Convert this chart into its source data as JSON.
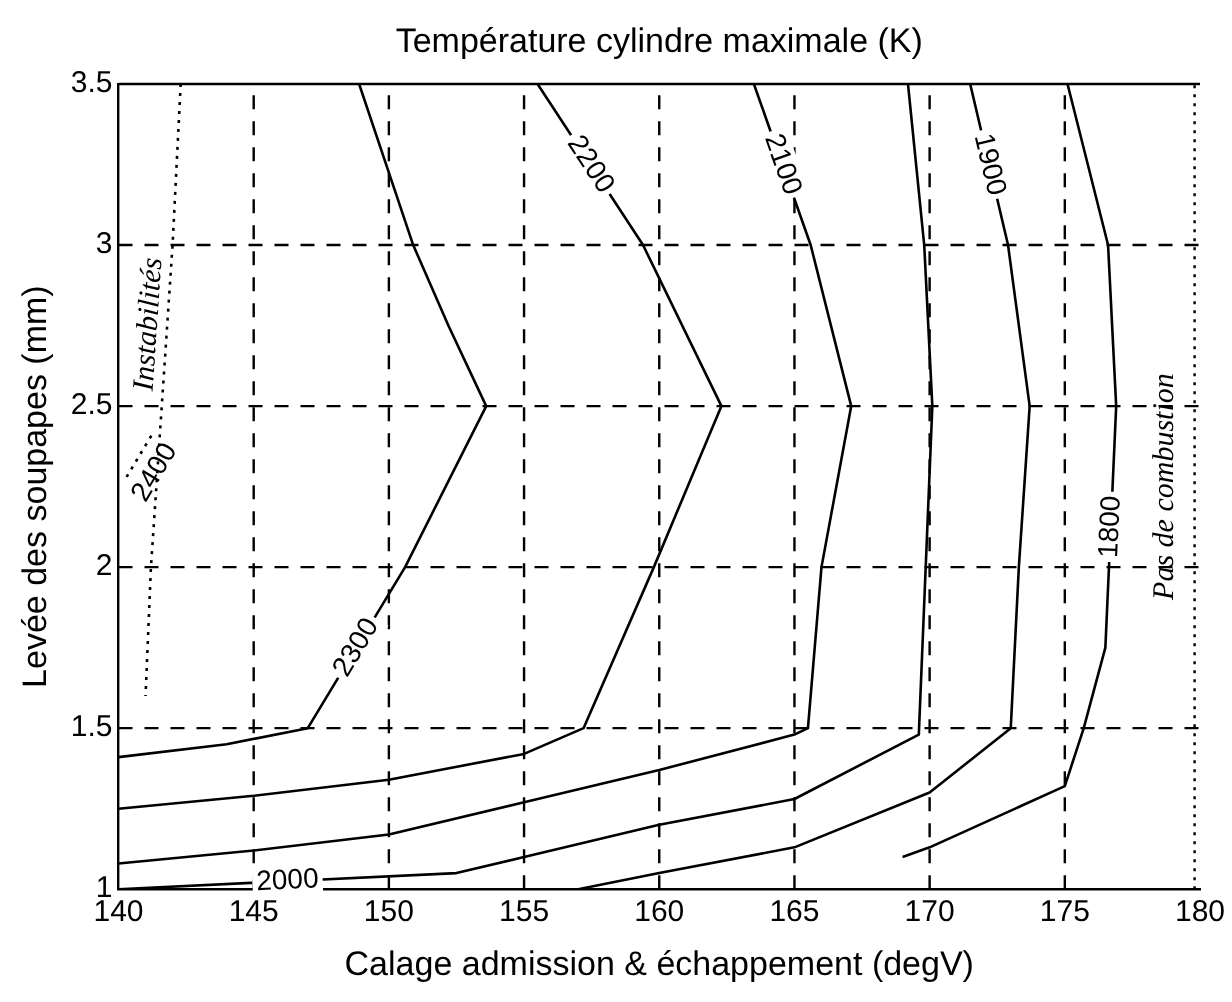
{
  "chart_data": {
    "type": "line",
    "title": "Température cylindre maximale (K)",
    "xlabel": "Calage admission & échappement (degV)",
    "ylabel": "Levée des soupapes (mm)",
    "xlim": [
      140,
      180
    ],
    "xticks": [
      140,
      145,
      150,
      155,
      160,
      165,
      170,
      175,
      180
    ],
    "ylim": [
      1,
      3.5
    ],
    "yticks": [
      1,
      1.5,
      2,
      2.5,
      3,
      3.5
    ],
    "grid": true,
    "legend": false,
    "marker": "none",
    "series": [
      {
        "name": "2400",
        "color": "#000000",
        "line_style": "dotted",
        "x": [
          140.3,
          141.3
        ],
        "values": [
          2.28,
          2.42
        ]
      },
      {
        "name": "Instabilités",
        "color": "#000000",
        "line_style": "dotted",
        "x": [
          142.3,
          142,
          141.6,
          141.2,
          141
        ],
        "values": [
          3.5,
          3,
          2.5,
          2,
          1.6
        ]
      },
      {
        "name": "2300",
        "color": "#000000",
        "line_style": "solid",
        "x": [
          140,
          144,
          147,
          150.6,
          153.6,
          152.2,
          150.9,
          148.9
        ],
        "values": [
          1.41,
          1.45,
          1.5,
          2,
          2.5,
          2.75,
          3,
          3.5
        ]
      },
      {
        "name": "2200",
        "color": "#000000",
        "line_style": "solid",
        "x": [
          140,
          145,
          150,
          155,
          157.2,
          159.8,
          162.3,
          159.4,
          155.5
        ],
        "values": [
          1.25,
          1.29,
          1.34,
          1.42,
          1.5,
          2,
          2.5,
          3,
          3.5
        ]
      },
      {
        "name": "2100",
        "color": "#000000",
        "line_style": "solid",
        "x": [
          140,
          145,
          150,
          155,
          160,
          165,
          165.5,
          166,
          167.1,
          165.6,
          163.5
        ],
        "values": [
          1.08,
          1.12,
          1.17,
          1.27,
          1.37,
          1.48,
          1.5,
          2,
          2.5,
          3,
          3.5
        ]
      },
      {
        "name": "2000",
        "color": "#000000",
        "line_style": "solid",
        "x": [
          140,
          152.5,
          155,
          160,
          165,
          169.6,
          170.1,
          169.8,
          169.2
        ],
        "values": [
          1,
          1.05,
          1.1,
          1.2,
          1.28,
          1.48,
          2.5,
          3,
          3.5
        ]
      },
      {
        "name": "1900",
        "color": "#000000",
        "line_style": "solid",
        "x": [
          157,
          160,
          165,
          170,
          173,
          173.3,
          173.7,
          172.9,
          171.5
        ],
        "values": [
          1,
          1.05,
          1.13,
          1.3,
          1.5,
          2,
          2.5,
          3,
          3.5
        ]
      },
      {
        "name": "1800",
        "color": "#000000",
        "line_style": "solid",
        "x": [
          169,
          170,
          175,
          175.7,
          176.5,
          176.9,
          176.6,
          175.1
        ],
        "values": [
          1.1,
          1.13,
          1.32,
          1.5,
          1.75,
          2.5,
          3,
          3.5
        ]
      }
    ],
    "ref_lines": [
      {
        "axis": "x",
        "value": 179.8,
        "label": "Pas de combustion",
        "line_style": "dotted",
        "color": "#000000"
      }
    ]
  }
}
